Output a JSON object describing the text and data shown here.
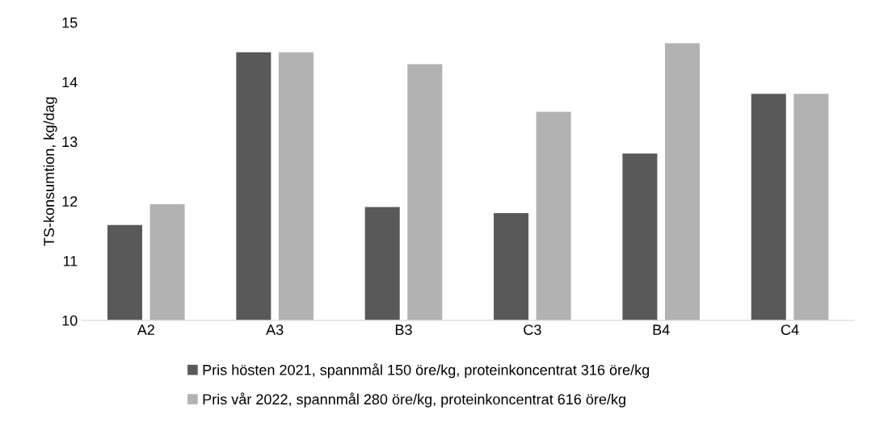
{
  "chart_data": {
    "type": "bar",
    "ylabel": "TS-konsumtion, kg/dag",
    "categories": [
      "A2",
      "A3",
      "B3",
      "C3",
      "B4",
      "C4"
    ],
    "series": [
      {
        "name": "Pris hösten 2021, spannmål 150 öre/kg, proteinkoncentrat 316 öre/kg",
        "color": "#595959",
        "values": [
          11.6,
          14.5,
          11.9,
          11.8,
          12.8,
          13.8
        ]
      },
      {
        "name": "Pris vår 2022, spannmål 280 öre/kg, proteinkoncentrat 616 öre/kg",
        "color": "#b2b2b2",
        "values": [
          11.95,
          14.5,
          14.3,
          13.5,
          14.65,
          13.8
        ]
      }
    ],
    "ylim": [
      10,
      15
    ],
    "yticks": [
      10,
      11,
      12,
      13,
      14,
      15
    ],
    "grid": false,
    "legend": "bottom"
  }
}
